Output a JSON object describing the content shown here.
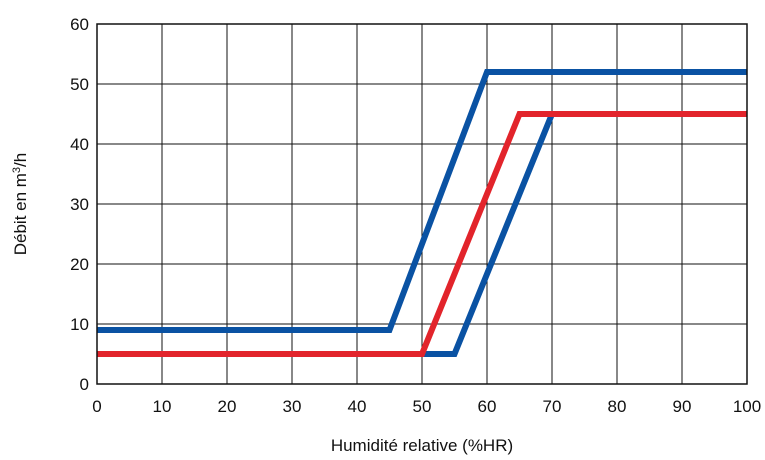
{
  "chart_data": {
    "type": "line",
    "xlabel": "Humidité relative (%HR)",
    "ylabel_main": "Débit en m",
    "ylabel_sup": "3",
    "ylabel_tail": "/h",
    "xlim": [
      0,
      100
    ],
    "ylim": [
      0,
      60
    ],
    "xticks": [
      0,
      10,
      20,
      30,
      40,
      50,
      60,
      70,
      80,
      90,
      100
    ],
    "yticks": [
      0,
      10,
      20,
      30,
      40,
      50,
      60
    ],
    "grid": true,
    "legend": "none",
    "series": [
      {
        "color": "#0a52a3",
        "points": [
          [
            0,
            9
          ],
          [
            45,
            9
          ],
          [
            60,
            52
          ],
          [
            100,
            52
          ]
        ]
      },
      {
        "color": "#0a52a3",
        "points": [
          [
            0,
            5
          ],
          [
            55,
            5
          ],
          [
            70,
            45
          ],
          [
            100,
            45
          ]
        ]
      },
      {
        "color": "#e2242b",
        "points": [
          [
            0,
            5
          ],
          [
            50,
            5
          ],
          [
            65,
            45
          ],
          [
            100,
            45
          ]
        ]
      }
    ]
  }
}
